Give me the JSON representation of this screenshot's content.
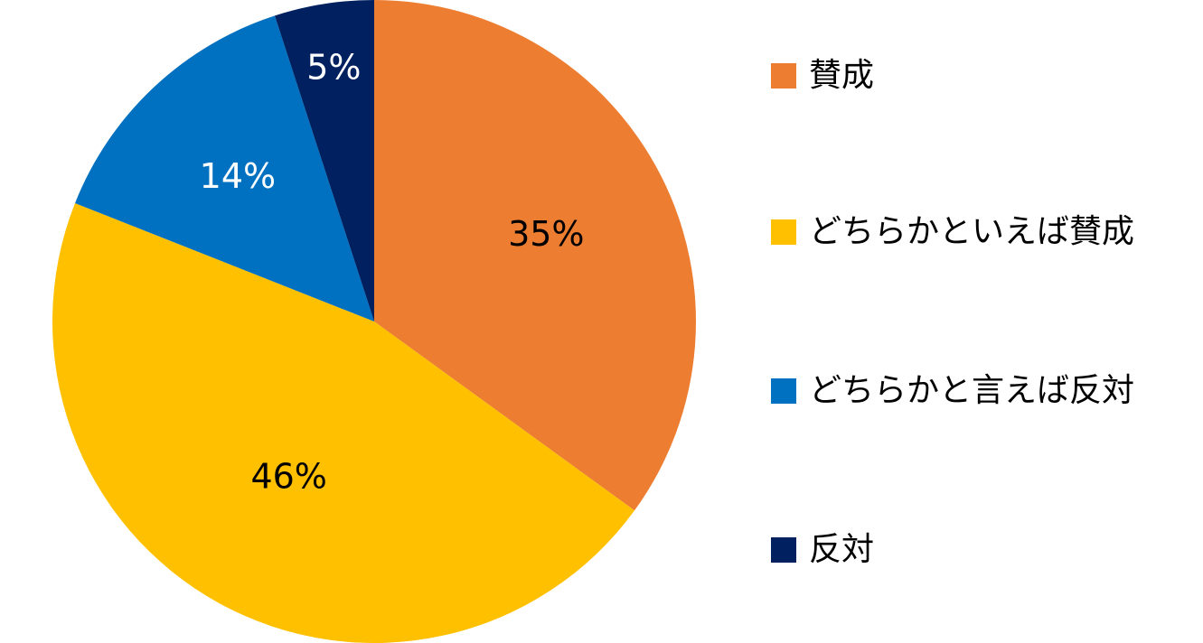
{
  "chart_data": {
    "type": "pie",
    "title": "",
    "start_angle_deg": 0,
    "direction": "clockwise",
    "legend_position": "right",
    "slices": [
      {
        "label": "賛成",
        "value": 35,
        "value_label": "35%",
        "color": "#ED7D31",
        "label_color": "#000000"
      },
      {
        "label": "どちらかといえば賛成",
        "value": 46,
        "value_label": "46%",
        "color": "#FFC000",
        "label_color": "#000000"
      },
      {
        "label": "どちらかと言えば反対",
        "value": 14,
        "value_label": "14%",
        "color": "#0070C0",
        "label_color": "#ffffff"
      },
      {
        "label": "反対",
        "value": 5,
        "value_label": "5%",
        "color": "#002060",
        "label_color": "#ffffff"
      }
    ]
  }
}
